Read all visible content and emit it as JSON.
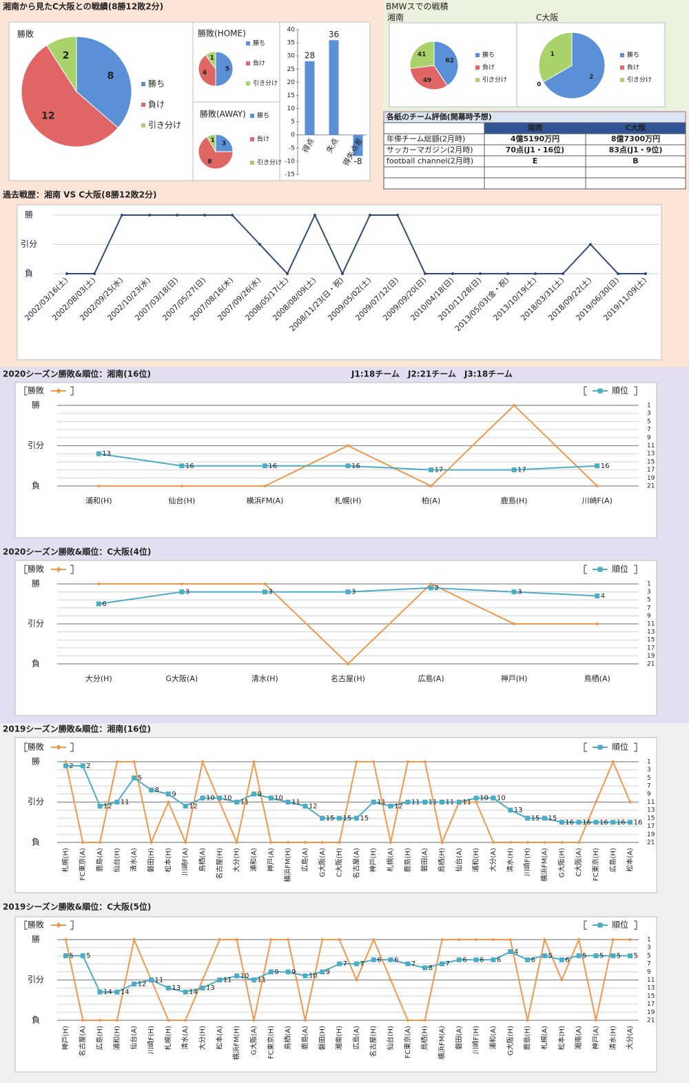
{
  "sections": {
    "record": "湘南から見たC大阪との戦績(8勝12敗2分)",
    "bmw": "BMWスでの戦積"
  },
  "table": {
    "title": "各紙のチーム評価(開幕時予想)",
    "columns": [
      "湘南",
      "C大阪"
    ],
    "rows": [
      [
        "年俸チーム総額(2月時)",
        "4億5190万円",
        "8億7300万円"
      ],
      [
        "サッカーマガジン(2月時)",
        "70点(J1・16位)",
        "83点(J1・9位)"
      ],
      [
        "football channel(2月時)",
        "E",
        "B"
      ]
    ]
  },
  "chart_data": [
    {
      "type": "pie",
      "title": "勝敗",
      "categories": [
        "勝ち",
        "負け",
        "引き分け"
      ],
      "values": [
        8,
        12,
        2
      ],
      "colors": [
        "#5b8fd6",
        "#e06666",
        "#a9d26a"
      ]
    },
    {
      "type": "pie",
      "title": "勝敗(HOME)",
      "categories": [
        "勝ち",
        "負け",
        "引き分け"
      ],
      "values": [
        5,
        4,
        1
      ],
      "colors": [
        "#5b8fd6",
        "#e06666",
        "#a9d26a"
      ]
    },
    {
      "type": "pie",
      "title": "勝敗(AWAY)",
      "categories": [
        "勝ち",
        "負け",
        "引き分け"
      ],
      "values": [
        3,
        8,
        1
      ],
      "colors": [
        "#5b8fd6",
        "#e06666",
        "#a9d26a"
      ]
    },
    {
      "type": "bar",
      "categories": [
        "得点",
        "失点",
        "得失点差"
      ],
      "values": [
        28,
        36,
        -8
      ],
      "color": "#5b8fd6",
      "ylim": [
        -15,
        40
      ],
      "yticks": [
        -15,
        -10,
        -5,
        0,
        5,
        10,
        15,
        20,
        25,
        30,
        35,
        40
      ]
    },
    {
      "type": "pie",
      "title": "湘南",
      "categories": [
        "勝ち",
        "負け",
        "引き分け"
      ],
      "values": [
        62,
        49,
        41
      ],
      "colors": [
        "#5b8fd6",
        "#e06666",
        "#a9d26a"
      ]
    },
    {
      "type": "pie",
      "title": "C大阪",
      "categories": [
        "勝ち",
        "負け",
        "引き分け"
      ],
      "values": [
        2,
        0,
        1
      ],
      "colors": [
        "#5b8fd6",
        "#e06666",
        "#a9d26a"
      ]
    },
    {
      "type": "line",
      "title": "過去戦歴：湘南 VS C大阪(8勝12敗2分)",
      "categories": [
        "2002/03/16(土)",
        "2002/08/03(土)",
        "2002/09/25(水)",
        "2002/10/23(水)",
        "2007/03/18(日)",
        "2007/05/27(日)",
        "2007/08/16(木)",
        "2007/09/26(水)",
        "2008/05/17(土)",
        "2008/08/09(土)",
        "2008/11/23(日・祝)",
        "2009/05/02(土)",
        "2009/07/12(日)",
        "2009/09/20(日)",
        "2010/04/18(日)",
        "2010/11/28(日)",
        "2013/05/03(金・祝)",
        "2013/10/19(土)",
        "2018/03/31(土)",
        "2018/09/22(土)",
        "2019/06/30(日)",
        "2019/11/09(土)"
      ],
      "values": [
        0,
        0,
        2,
        2,
        2,
        2,
        2,
        1,
        0,
        2,
        0,
        2,
        2,
        0,
        0,
        0,
        0,
        0,
        0,
        1,
        0,
        0
      ],
      "color": "#2e4a78",
      "ylim": [
        0,
        2
      ],
      "yticks": [
        {
          "value": 0,
          "label": "負"
        },
        {
          "value": 1,
          "label": "引分"
        },
        {
          "value": 2,
          "label": "勝"
        }
      ],
      "grid": true
    },
    {
      "type": "line",
      "title": "2020シーズン勝敗&順位：湘南(16位)",
      "annotation": "J1:18チーム　J2:21チーム　J3:18チーム",
      "categories": [
        "浦和(H)",
        "仙台(H)",
        "横浜FM(A)",
        "札幌(H)",
        "柏(A)",
        "鹿島(H)",
        "川崎F(A)"
      ],
      "series": [
        {
          "name": "勝敗",
          "color": "#f0974a",
          "values": [
            0,
            0,
            0,
            1,
            0,
            2,
            0
          ]
        },
        {
          "name": "順位",
          "color": "#4bacc6",
          "axis": "y2",
          "values": [
            13,
            16,
            16,
            16,
            17,
            17,
            16
          ]
        }
      ],
      "ylim": [
        0,
        2
      ],
      "yticks": [
        {
          "value": 0,
          "label": "負"
        },
        {
          "value": 1,
          "label": "引分"
        },
        {
          "value": 2,
          "label": "勝"
        }
      ],
      "y2lim": [
        21,
        1
      ],
      "y2ticks": [
        1,
        3,
        5,
        7,
        9,
        11,
        13,
        15,
        17,
        19,
        21
      ],
      "grid": true
    },
    {
      "type": "line",
      "title": "2020シーズン勝敗&順位：C大阪(4位)",
      "categories": [
        "大分(H)",
        "G大阪(A)",
        "清水(H)",
        "名古屋(H)",
        "広島(A)",
        "神戸(H)",
        "鳥栖(A)"
      ],
      "series": [
        {
          "name": "勝敗",
          "color": "#f0974a",
          "values": [
            2,
            2,
            2,
            0,
            2,
            1,
            1
          ]
        },
        {
          "name": "順位",
          "color": "#4bacc6",
          "axis": "y2",
          "values": [
            6,
            3,
            3,
            3,
            2,
            3,
            4
          ]
        }
      ],
      "ylim": [
        0,
        2
      ],
      "yticks": [
        {
          "value": 0,
          "label": "負"
        },
        {
          "value": 1,
          "label": "引分"
        },
        {
          "value": 2,
          "label": "勝"
        }
      ],
      "y2lim": [
        21,
        1
      ],
      "y2ticks": [
        1,
        3,
        5,
        7,
        9,
        11,
        13,
        15,
        17,
        19,
        21
      ],
      "grid": true
    },
    {
      "type": "line",
      "title": "2019シーズン勝敗&順位：湘南(16位)",
      "categories": [
        "札幌(H)",
        "FC東京(A)",
        "鹿島(A)",
        "仙台(H)",
        "清水(A)",
        "磐田(H)",
        "松本(H)",
        "川崎F(A)",
        "鳥栖(A)",
        "名古屋(H)",
        "大分(H)",
        "浦和(A)",
        "神戸(A)",
        "横浜FM(H)",
        "広島(A)",
        "G大阪(A)",
        "C大阪(H)",
        "名古屋(A)",
        "神戸(H)",
        "札幌(A)",
        "鹿島(H)",
        "磐田(A)",
        "鳥栖(H)",
        "仙台(A)",
        "浦和(H)",
        "大分(A)",
        "清水(H)",
        "川崎F(H)",
        "横浜FM(A)",
        "G大阪(H)",
        "C大阪(A)",
        "FC東京(H)",
        "広島(H)",
        "松本(A)"
      ],
      "series": [
        {
          "name": "勝敗",
          "color": "#f0974a",
          "values": [
            2,
            0,
            0,
            2,
            2,
            0,
            1,
            0,
            2,
            1,
            0,
            2,
            0,
            0,
            0,
            0,
            0,
            2,
            2,
            0,
            2,
            2,
            0,
            1,
            1,
            0,
            0,
            0,
            0,
            0,
            0,
            1,
            2,
            1
          ]
        },
        {
          "name": "順位",
          "color": "#4bacc6",
          "axis": "y2",
          "values": [
            2,
            2,
            12,
            11,
            5,
            8,
            9,
            12,
            10,
            10,
            11,
            9,
            10,
            11,
            12,
            15,
            15,
            15,
            11,
            12,
            11,
            11,
            11,
            11,
            10,
            10,
            13,
            15,
            15,
            16,
            16,
            16,
            16,
            16
          ]
        }
      ],
      "ylim": [
        0,
        2
      ],
      "yticks": [
        {
          "value": 0,
          "label": "負"
        },
        {
          "value": 1,
          "label": "引分"
        },
        {
          "value": 2,
          "label": "勝"
        }
      ],
      "y2lim": [
        21,
        1
      ],
      "y2ticks": [
        1,
        3,
        5,
        7,
        9,
        11,
        13,
        15,
        17,
        19,
        21
      ],
      "grid": true
    },
    {
      "type": "line",
      "title": "2019シーズン勝敗&順位：C大阪(5位)",
      "categories": [
        "神戸(H)",
        "名古屋(A)",
        "広島(H)",
        "浦和(H)",
        "仙台(A)",
        "川崎F(H)",
        "札幌(H)",
        "清水(A)",
        "大分(H)",
        "松本(A)",
        "横浜FM(H)",
        "G大阪(A)",
        "FC東京(H)",
        "鳥栖(A)",
        "鹿島(A)",
        "磐田(H)",
        "湘南(H)",
        "広島(A)",
        "名古屋(H)",
        "仙台(H)",
        "FC東京(A)",
        "鳥栖(H)",
        "横浜FM(A)",
        "磐田(A)",
        "川崎F(H)",
        "浦和(A)",
        "G大阪(H)",
        "鹿島(H)",
        "札幌(A)",
        "松本(H)",
        "湘南(A)",
        "神戸(A)",
        "清水(H)",
        "大分(A)"
      ],
      "series": [
        {
          "name": "勝敗",
          "color": "#f0974a",
          "values": [
            2,
            0,
            0,
            0,
            2,
            1,
            0,
            0,
            1,
            2,
            2,
            0,
            2,
            2,
            0,
            2,
            2,
            1,
            2,
            1,
            0,
            0,
            2,
            2,
            2,
            2,
            2,
            0,
            2,
            1,
            2,
            0,
            2,
            2
          ]
        },
        {
          "name": "順位",
          "color": "#4bacc6",
          "axis": "y2",
          "values": [
            5,
            5,
            14,
            14,
            12,
            11,
            13,
            14,
            13,
            11,
            10,
            11,
            9,
            9,
            10,
            9,
            7,
            7,
            6,
            6,
            7,
            8,
            7,
            6,
            6,
            6,
            4,
            6,
            5,
            6,
            5,
            5,
            5,
            5
          ]
        }
      ],
      "ylim": [
        0,
        2
      ],
      "yticks": [
        {
          "value": 0,
          "label": "負"
        },
        {
          "value": 1,
          "label": "引分"
        },
        {
          "value": 2,
          "label": "勝"
        }
      ],
      "y2lim": [
        21,
        1
      ],
      "y2ticks": [
        1,
        3,
        5,
        7,
        9,
        11,
        13,
        15,
        17,
        19,
        21
      ],
      "grid": true
    }
  ]
}
